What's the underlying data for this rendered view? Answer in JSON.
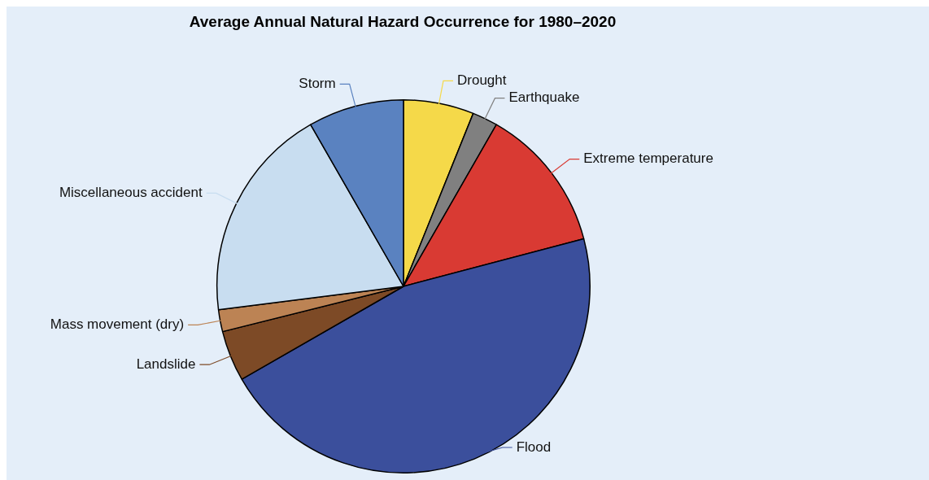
{
  "chart_data": {
    "type": "pie",
    "title": "Average Annual Natural Hazard Occurrence for 1980–2020",
    "categories": [
      "Drought",
      "Earthquake",
      "Extreme temperature",
      "Flood",
      "Landslide",
      "Mass movement (dry)",
      "Miscellaneous accident",
      "Storm"
    ],
    "values": [
      6.1,
      2.2,
      12.6,
      45.8,
      4.4,
      1.9,
      18.7,
      8.3
    ],
    "colors": [
      "#f5d949",
      "#808080",
      "#d93a33",
      "#3b4f9c",
      "#7d4a26",
      "#bc8354",
      "#c8ddf0",
      "#5a82c0"
    ],
    "legend": false
  }
}
